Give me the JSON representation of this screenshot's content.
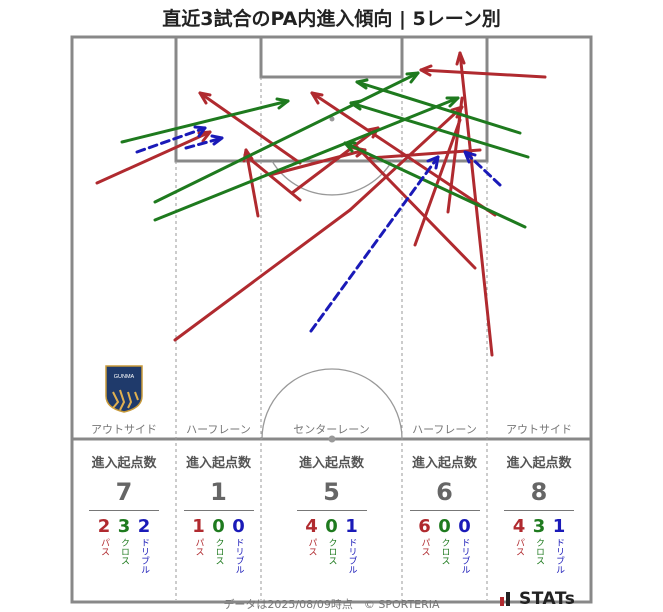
{
  "title": "直近3試合のPA内進入傾向 | 5レーン別",
  "lanes": [
    {
      "label": "アウトサイド",
      "heading": "進入起点数",
      "total": "7",
      "pass": "2",
      "cross": "3",
      "dribble": "2"
    },
    {
      "label": "ハーフレーン",
      "heading": "進入起点数",
      "total": "1",
      "pass": "1",
      "cross": "0",
      "dribble": "0"
    },
    {
      "label": "センターレーン",
      "heading": "進入起点数",
      "total": "5",
      "pass": "4",
      "cross": "0",
      "dribble": "1"
    },
    {
      "label": "ハーフレーン",
      "heading": "進入起点数",
      "total": "6",
      "pass": "6",
      "cross": "0",
      "dribble": "0"
    },
    {
      "label": "アウトサイド",
      "heading": "進入起点数",
      "total": "8",
      "pass": "4",
      "cross": "3",
      "dribble": "1"
    }
  ],
  "legend": {
    "pass": "パス",
    "cross": "クロス",
    "dribble": "ドリブル"
  },
  "colors": {
    "pass": "#b02a2f",
    "cross": "#1e7a1e",
    "dribble": "#1a1ab8",
    "pitch_line": "#888888"
  },
  "badge": {
    "text": "GUNMA",
    "icon": "team-crest-icon"
  },
  "footer": "データは2025/08/09時点　© SPORTERIA",
  "brand": {
    "text": "STATs",
    "icon": "stats-logo-icon"
  }
}
